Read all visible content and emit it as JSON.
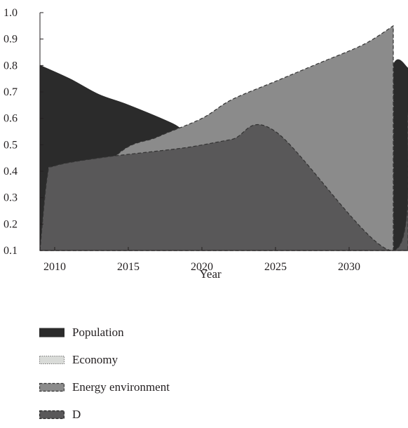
{
  "chart_data": {
    "type": "area",
    "title": "",
    "xlabel": "Year",
    "ylabel": "",
    "x_ticks": [
      2010,
      2015,
      2020,
      2025,
      2030
    ],
    "y_ticks": [
      0.1,
      0.2,
      0.3,
      0.4,
      0.5,
      0.6,
      0.7,
      0.8,
      0.9,
      1.0
    ],
    "y_tick_labels": [
      "0.1",
      "0.2",
      "0.3",
      "0.4",
      "0.5",
      "0.6",
      "0.7",
      "0.8",
      "0.9",
      "1.0"
    ],
    "xlim": [
      2009,
      2034
    ],
    "ylim": [
      0.1,
      1.0
    ],
    "grid": false,
    "legend_position": "bottom",
    "series": [
      {
        "name": "Population",
        "color": "#2b2b2b",
        "line_style": "solid",
        "points": [
          [
            2009,
            0.8
          ],
          [
            2011,
            0.75
          ],
          [
            2013,
            0.69
          ],
          [
            2015,
            0.65
          ],
          [
            2018,
            0.58
          ],
          [
            2020,
            0.52
          ],
          [
            2025,
            0.5
          ],
          [
            2032,
            0.47
          ],
          [
            2033,
            0.8
          ],
          [
            2034,
            0.79
          ]
        ]
      },
      {
        "name": "Economy",
        "color": "#d9dbd8",
        "line_style": "dotted",
        "points": [
          [
            2009,
            0.1
          ],
          [
            2010,
            0.2
          ],
          [
            2012,
            0.2
          ],
          [
            2015,
            0.22
          ],
          [
            2018,
            0.27
          ],
          [
            2020,
            0.33
          ],
          [
            2022,
            0.41
          ],
          [
            2025,
            0.54
          ],
          [
            2028,
            0.67
          ],
          [
            2031,
            0.81
          ],
          [
            2033,
            0.95
          ]
        ]
      },
      {
        "name": "Energy environment",
        "color": "#8b8b8b",
        "line_style": "dashed",
        "points": [
          [
            2009,
            0.1
          ],
          [
            2014,
            0.45
          ],
          [
            2017,
            0.53
          ],
          [
            2020,
            0.6
          ],
          [
            2022,
            0.67
          ],
          [
            2025,
            0.74
          ],
          [
            2028,
            0.81
          ],
          [
            2031,
            0.88
          ],
          [
            2033,
            0.95
          ]
        ]
      },
      {
        "name": "D",
        "color": "#595859",
        "line_style": "dashed",
        "points": [
          [
            2009,
            0.1
          ],
          [
            2009.5,
            0.38
          ],
          [
            2010,
            0.42
          ],
          [
            2013,
            0.45
          ],
          [
            2016,
            0.47
          ],
          [
            2019,
            0.49
          ],
          [
            2022,
            0.52
          ],
          [
            2025,
            0.55
          ],
          [
            2033,
            0.1
          ],
          [
            2034,
            0.62
          ]
        ]
      }
    ]
  },
  "legend": {
    "items": [
      {
        "label": "Population"
      },
      {
        "label": "Economy"
      },
      {
        "label": "Energy environment"
      },
      {
        "label": "D"
      }
    ]
  }
}
